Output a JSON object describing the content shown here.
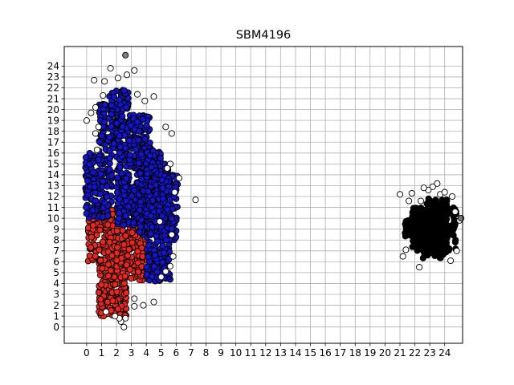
{
  "chart_data": {
    "type": "scatter",
    "title": "SBM4196",
    "xlabel": "",
    "ylabel": "",
    "xlim": [
      -1.5,
      25.2
    ],
    "ylim": [
      -1.5,
      25.8
    ],
    "grid": true,
    "x_ticks": [
      0,
      1,
      2,
      3,
      4,
      5,
      6,
      7,
      8,
      9,
      10,
      11,
      12,
      13,
      14,
      15,
      16,
      17,
      18,
      19,
      20,
      21,
      22,
      23,
      24
    ],
    "y_ticks": [
      0,
      1,
      2,
      3,
      4,
      5,
      6,
      7,
      8,
      9,
      10,
      11,
      12,
      13,
      14,
      15,
      16,
      17,
      18,
      19,
      20,
      21,
      22,
      23,
      24
    ],
    "series": [
      {
        "name": "cluster-red",
        "color": "#e8281e",
        "blocks": [
          [
            0.1,
            2.0,
            6.0,
            10.8
          ],
          [
            0.8,
            2.7,
            1.0,
            6.2
          ],
          [
            2.0,
            4.0,
            4.3,
            9.2
          ]
        ]
      },
      {
        "name": "cluster-blue",
        "color": "#1414c8",
        "blocks": [
          [
            -0.1,
            1.7,
            10.0,
            16.0
          ],
          [
            0.8,
            2.4,
            16.0,
            20.6
          ],
          [
            1.5,
            2.8,
            20.0,
            21.8
          ],
          [
            2.0,
            4.3,
            9.3,
            19.5
          ],
          [
            3.5,
            5.0,
            8.5,
            16.3
          ],
          [
            4.0,
            5.6,
            4.2,
            15.0
          ],
          [
            5.0,
            6.1,
            8.0,
            14.0
          ]
        ]
      },
      {
        "name": "cluster-black",
        "color": "#000000",
        "blocks": [
          [
            21.8,
            24.8,
            7.0,
            11.0
          ],
          [
            22.5,
            24.2,
            6.3,
            11.8
          ],
          [
            21.3,
            22.2,
            8.3,
            10.2
          ]
        ]
      },
      {
        "name": "outliers",
        "color": "#ffffff",
        "points": [
          [
            0.0,
            19.0
          ],
          [
            0.3,
            19.7
          ],
          [
            0.6,
            20.2
          ],
          [
            0.5,
            22.7
          ],
          [
            1.2,
            22.6
          ],
          [
            1.6,
            23.8
          ],
          [
            2.1,
            22.9
          ],
          [
            2.7,
            23.2
          ],
          [
            3.2,
            23.6
          ],
          [
            3.4,
            21.4
          ],
          [
            3.9,
            20.8
          ],
          [
            4.5,
            21.2
          ],
          [
            0.8,
            18.4
          ],
          [
            0.6,
            17.8
          ],
          [
            0.7,
            16.3
          ],
          [
            5.3,
            18.4
          ],
          [
            5.7,
            17.8
          ],
          [
            5.6,
            15.0
          ],
          [
            5.4,
            14.6
          ],
          [
            6.2,
            13.7
          ],
          [
            5.9,
            12.4
          ],
          [
            7.3,
            11.7
          ],
          [
            5.7,
            8.5
          ],
          [
            5.8,
            6.5
          ],
          [
            5.6,
            5.6
          ],
          [
            5.3,
            5.1
          ],
          [
            4.5,
            2.3
          ],
          [
            3.8,
            2.0
          ],
          [
            3.2,
            2.6
          ],
          [
            3.2,
            1.9
          ],
          [
            2.6,
            0.8
          ],
          [
            2.3,
            0.5
          ],
          [
            2.5,
            0.0
          ],
          [
            2.2,
            0.8
          ],
          [
            1.9,
            1.0
          ],
          [
            1.3,
            1.4
          ],
          [
            4.9,
            9.7
          ],
          [
            5.0,
            4.6
          ],
          [
            1.1,
            21.3
          ],
          [
            21.0,
            12.2
          ],
          [
            21.8,
            12.3
          ],
          [
            21.6,
            11.6
          ],
          [
            22.9,
            12.6
          ],
          [
            23.2,
            12.9
          ],
          [
            23.7,
            12.2
          ],
          [
            24.0,
            12.4
          ],
          [
            24.5,
            12.0
          ],
          [
            22.4,
            11.6
          ],
          [
            21.4,
            7.1
          ],
          [
            21.2,
            6.5
          ],
          [
            22.3,
            5.5
          ],
          [
            24.4,
            6.1
          ],
          [
            24.8,
            7.0
          ],
          [
            25.0,
            9.8
          ],
          [
            24.7,
            10.6
          ],
          [
            23.5,
            13.2
          ],
          [
            22.6,
            12.8
          ]
        ]
      },
      {
        "name": "gray-outlier",
        "color": "#7f7f7f",
        "points": [
          [
            2.6,
            25.0
          ],
          [
            25.1,
            10.0
          ]
        ]
      }
    ]
  }
}
